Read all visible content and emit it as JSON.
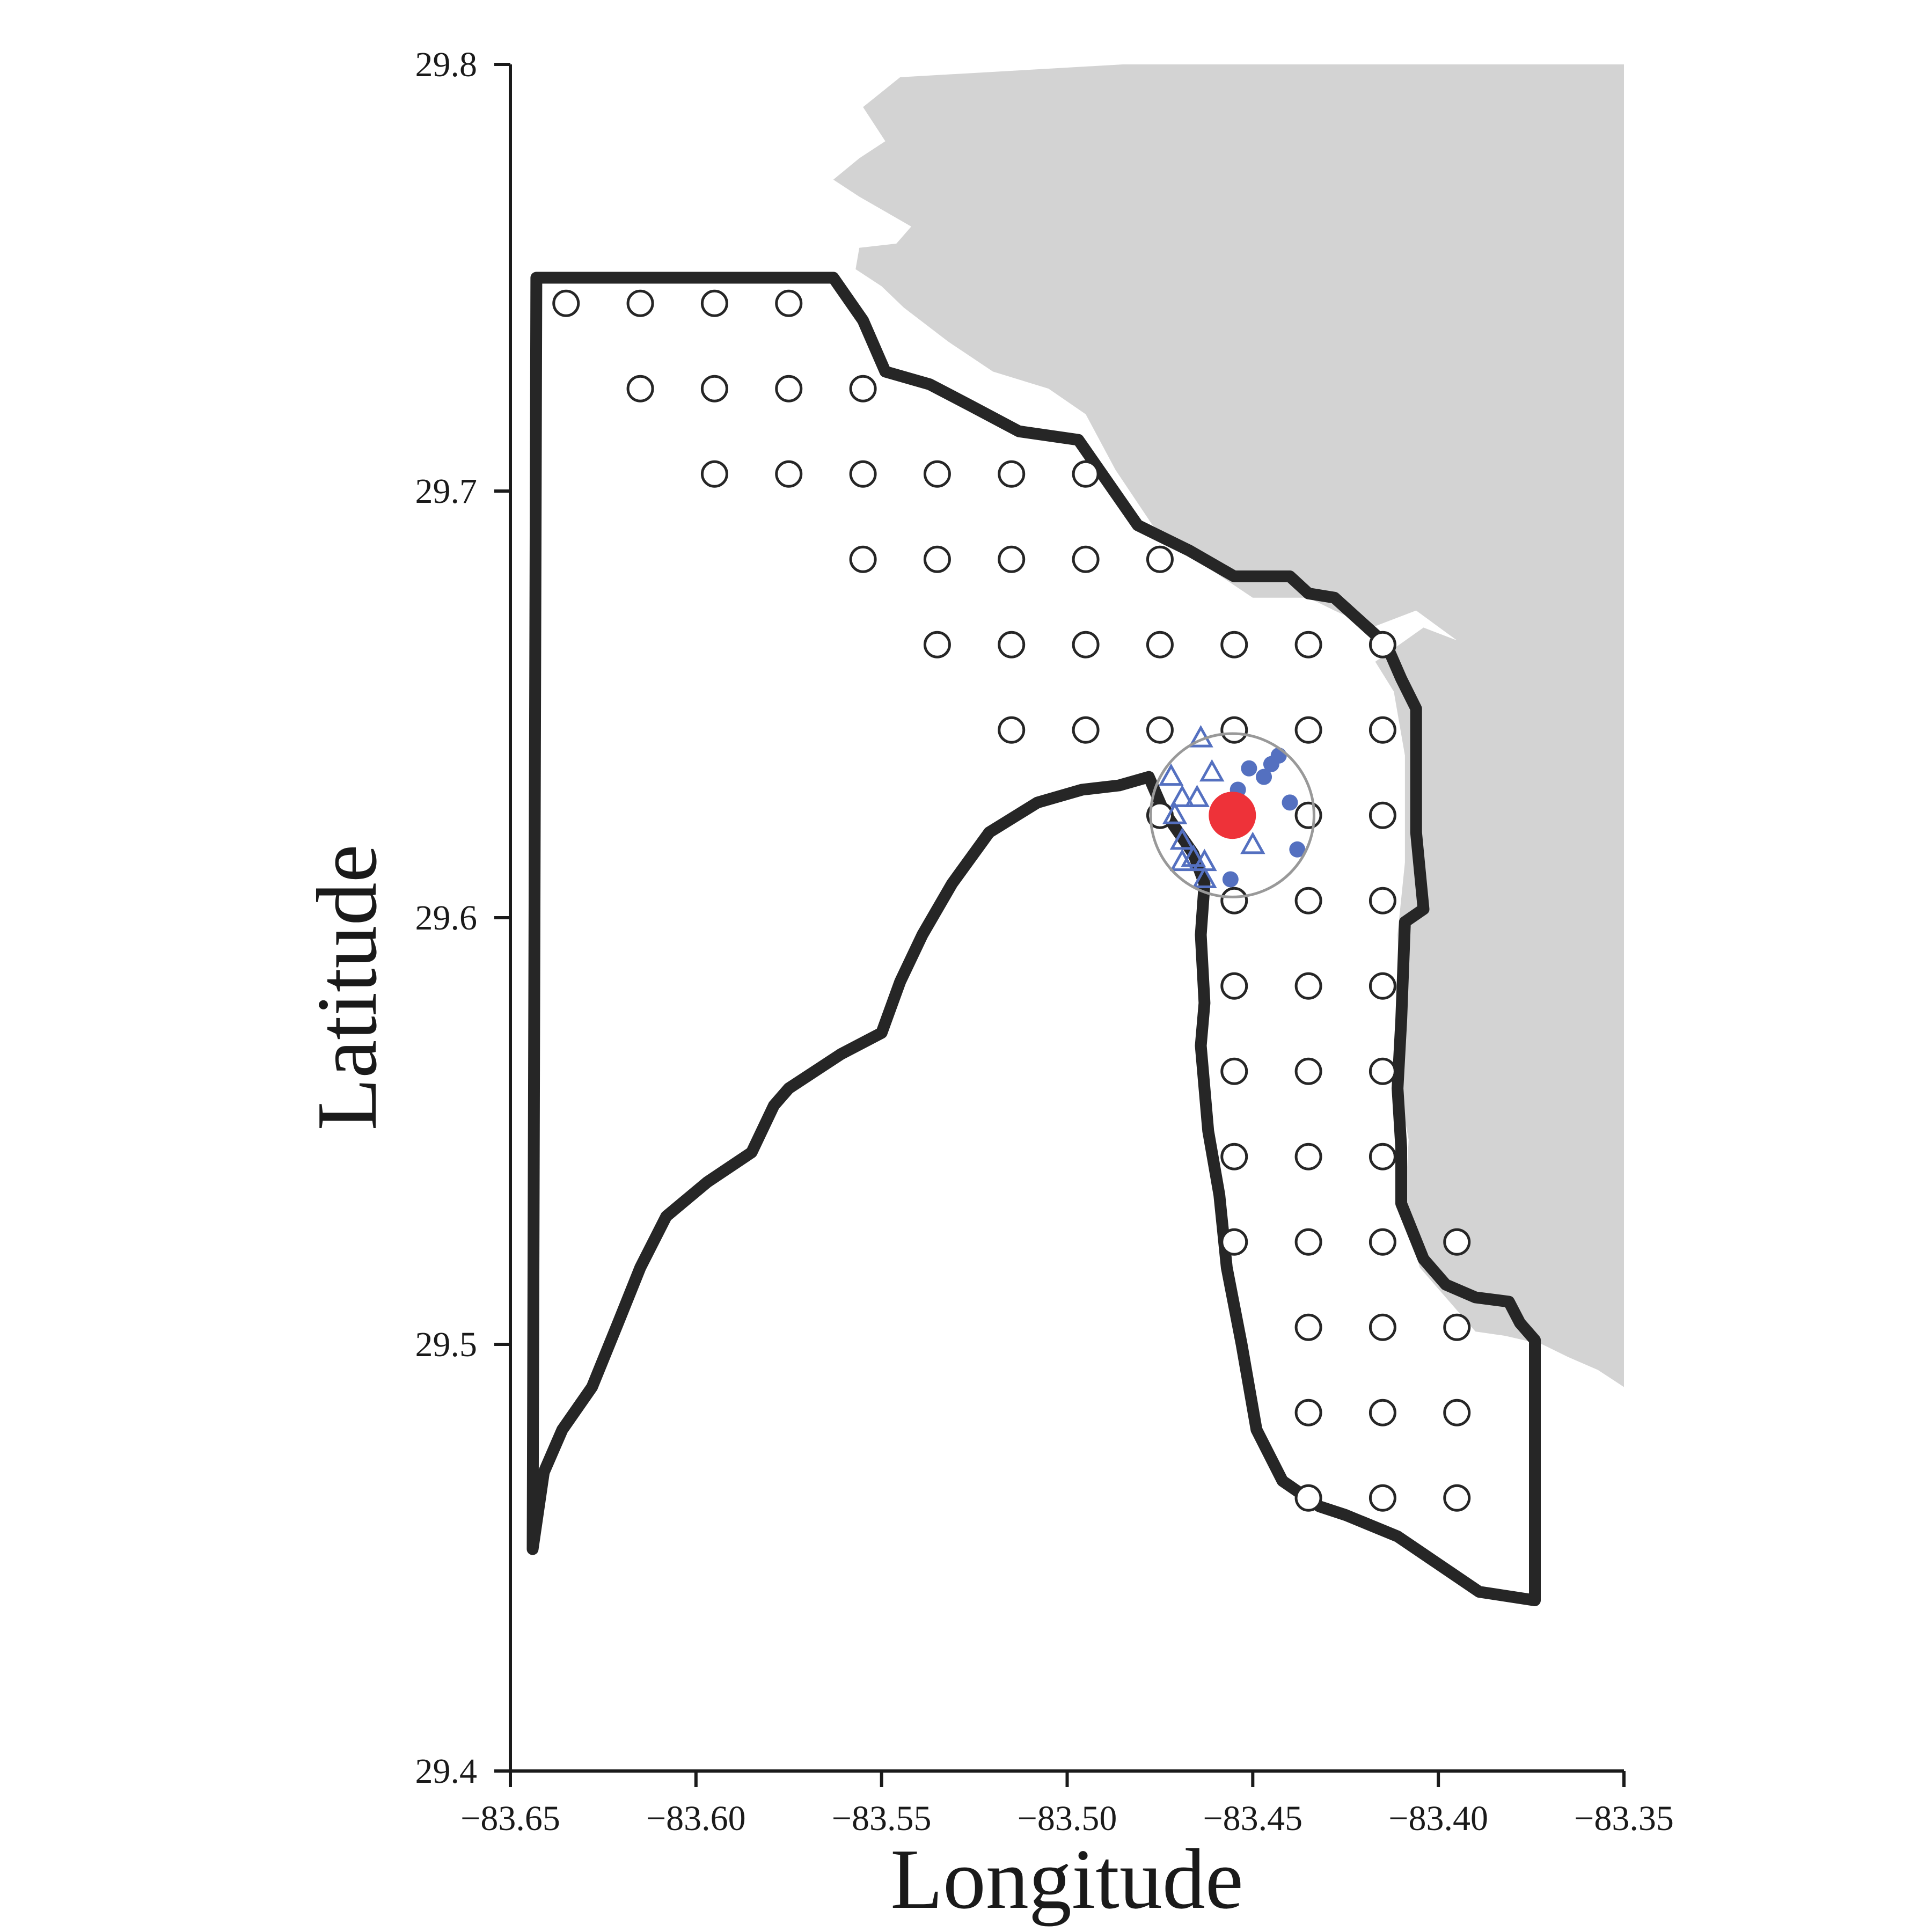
{
  "chart_data": {
    "type": "scatter",
    "title": "",
    "xlabel": "Longitude",
    "ylabel": "Latitude",
    "xlim": [
      -83.65,
      -83.35
    ],
    "ylim": [
      29.4,
      29.8
    ],
    "x_ticks": [
      -83.65,
      -83.6,
      -83.55,
      -83.5,
      -83.45,
      -83.4,
      -83.35
    ],
    "x_tick_labels": [
      "−83.65",
      "−83.60",
      "−83.55",
      "−83.50",
      "−83.45",
      "−83.40",
      "−83.35"
    ],
    "y_ticks": [
      29.4,
      29.5,
      29.6,
      29.7,
      29.8
    ],
    "y_tick_labels": [
      "29.4",
      "29.5",
      "29.6",
      "29.7",
      "29.8"
    ],
    "grid": false,
    "legend": "none",
    "colors": {
      "land": "#d3d3d3",
      "boundary": "#262626",
      "grid_station": "#262626",
      "nearby_point": "#5470c0",
      "focal_point": "#ee3239",
      "buffer_circle": "#999999"
    },
    "land": [
      [
        -83.485,
        29.8
      ],
      [
        -83.35,
        29.8
      ],
      [
        -83.35,
        29.49
      ],
      [
        -83.357,
        29.494
      ],
      [
        -83.365,
        29.497
      ],
      [
        -83.372,
        29.5
      ],
      [
        -83.382,
        29.502
      ],
      [
        -83.39,
        29.503
      ],
      [
        -83.397,
        29.51
      ],
      [
        -83.405,
        29.518
      ],
      [
        -83.409,
        29.532
      ],
      [
        -83.408,
        29.548
      ],
      [
        -83.411,
        29.562
      ],
      [
        -83.41,
        29.578
      ],
      [
        -83.411,
        29.596
      ],
      [
        -83.409,
        29.613
      ],
      [
        -83.409,
        29.638
      ],
      [
        -83.412,
        29.653
      ],
      [
        -83.417,
        29.66
      ],
      [
        -83.404,
        29.668
      ],
      [
        -83.395,
        29.665
      ],
      [
        -83.406,
        29.672
      ],
      [
        -83.418,
        29.668
      ],
      [
        -83.428,
        29.672
      ],
      [
        -83.435,
        29.675
      ],
      [
        -83.45,
        29.675
      ],
      [
        -83.462,
        29.682
      ],
      [
        -83.477,
        29.692
      ],
      [
        -83.487,
        29.705
      ],
      [
        -83.495,
        29.718
      ],
      [
        -83.505,
        29.724
      ],
      [
        -83.52,
        29.728
      ],
      [
        -83.532,
        29.735
      ],
      [
        -83.544,
        29.743
      ],
      [
        -83.55,
        29.748
      ],
      [
        -83.557,
        29.752
      ],
      [
        -83.556,
        29.757
      ],
      [
        -83.546,
        29.758
      ],
      [
        -83.542,
        29.762
      ],
      [
        -83.548,
        29.765
      ],
      [
        -83.556,
        29.769
      ],
      [
        -83.563,
        29.773
      ],
      [
        -83.556,
        29.778
      ],
      [
        -83.549,
        29.782
      ],
      [
        -83.555,
        29.79
      ],
      [
        -83.545,
        29.797
      ]
    ],
    "boundary": [
      [
        -83.643,
        29.75
      ],
      [
        -83.563,
        29.75
      ],
      [
        -83.555,
        29.74
      ],
      [
        -83.549,
        29.728
      ],
      [
        -83.537,
        29.725
      ],
      [
        -83.526,
        29.72
      ],
      [
        -83.513,
        29.714
      ],
      [
        -83.497,
        29.712
      ],
      [
        -83.489,
        29.702
      ],
      [
        -83.481,
        29.692
      ],
      [
        -83.467,
        29.686
      ],
      [
        -83.455,
        29.68
      ],
      [
        -83.44,
        29.68
      ],
      [
        -83.435,
        29.676
      ],
      [
        -83.428,
        29.675
      ],
      [
        -83.414,
        29.664
      ],
      [
        -83.41,
        29.656
      ],
      [
        -83.406,
        29.649
      ],
      [
        -83.406,
        29.62
      ],
      [
        -83.404,
        29.602
      ],
      [
        -83.409,
        29.599
      ],
      [
        -83.41,
        29.576
      ],
      [
        -83.411,
        29.56
      ],
      [
        -83.41,
        29.546
      ],
      [
        -83.41,
        29.533
      ],
      [
        -83.404,
        29.52
      ],
      [
        -83.398,
        29.514
      ],
      [
        -83.39,
        29.511
      ],
      [
        -83.381,
        29.51
      ],
      [
        -83.378,
        29.505
      ],
      [
        -83.374,
        29.501
      ],
      [
        -83.374,
        29.44
      ],
      [
        -83.389,
        29.442
      ],
      [
        -83.411,
        29.455
      ],
      [
        -83.425,
        29.46
      ],
      [
        -83.432,
        29.462
      ],
      [
        -83.442,
        29.468
      ],
      [
        -83.449,
        29.48
      ],
      [
        -83.453,
        29.5
      ],
      [
        -83.457,
        29.518
      ],
      [
        -83.459,
        29.535
      ],
      [
        -83.462,
        29.55
      ],
      [
        -83.464,
        29.57
      ],
      [
        -83.463,
        29.58
      ],
      [
        -83.464,
        29.596
      ],
      [
        -83.463,
        29.608
      ],
      [
        -83.466,
        29.615
      ],
      [
        -83.474,
        29.625
      ],
      [
        -83.478,
        29.633
      ],
      [
        -83.486,
        29.631
      ],
      [
        -83.496,
        29.63
      ],
      [
        -83.508,
        29.627
      ],
      [
        -83.521,
        29.62
      ],
      [
        -83.531,
        29.608
      ],
      [
        -83.539,
        29.596
      ],
      [
        -83.545,
        29.585
      ],
      [
        -83.55,
        29.573
      ],
      [
        -83.561,
        29.568
      ],
      [
        -83.575,
        29.56
      ],
      [
        -83.579,
        29.556
      ],
      [
        -83.585,
        29.545
      ],
      [
        -83.597,
        29.538
      ],
      [
        -83.608,
        29.53
      ],
      [
        -83.615,
        29.518
      ],
      [
        -83.621,
        29.505
      ],
      [
        -83.628,
        29.49
      ],
      [
        -83.636,
        29.48
      ],
      [
        -83.641,
        29.47
      ],
      [
        -83.644,
        29.452
      ],
      [
        -83.643,
        29.75
      ]
    ],
    "grid_stations": [
      [
        -83.635,
        29.744
      ],
      [
        -83.615,
        29.744
      ],
      [
        -83.595,
        29.744
      ],
      [
        -83.575,
        29.744
      ],
      [
        -83.615,
        29.724
      ],
      [
        -83.595,
        29.724
      ],
      [
        -83.575,
        29.724
      ],
      [
        -83.555,
        29.724
      ],
      [
        -83.595,
        29.704
      ],
      [
        -83.575,
        29.704
      ],
      [
        -83.555,
        29.704
      ],
      [
        -83.535,
        29.704
      ],
      [
        -83.515,
        29.704
      ],
      [
        -83.495,
        29.704
      ],
      [
        -83.555,
        29.684
      ],
      [
        -83.535,
        29.684
      ],
      [
        -83.515,
        29.684
      ],
      [
        -83.495,
        29.684
      ],
      [
        -83.475,
        29.684
      ],
      [
        -83.535,
        29.664
      ],
      [
        -83.515,
        29.664
      ],
      [
        -83.495,
        29.664
      ],
      [
        -83.475,
        29.664
      ],
      [
        -83.455,
        29.664
      ],
      [
        -83.435,
        29.664
      ],
      [
        -83.415,
        29.664
      ],
      [
        -83.515,
        29.644
      ],
      [
        -83.495,
        29.644
      ],
      [
        -83.475,
        29.644
      ],
      [
        -83.455,
        29.644
      ],
      [
        -83.435,
        29.644
      ],
      [
        -83.415,
        29.644
      ],
      [
        -83.475,
        29.624
      ],
      [
        -83.435,
        29.624
      ],
      [
        -83.415,
        29.624
      ],
      [
        -83.455,
        29.604
      ],
      [
        -83.435,
        29.604
      ],
      [
        -83.415,
        29.604
      ],
      [
        -83.455,
        29.584
      ],
      [
        -83.435,
        29.584
      ],
      [
        -83.415,
        29.584
      ],
      [
        -83.455,
        29.564
      ],
      [
        -83.435,
        29.564
      ],
      [
        -83.415,
        29.564
      ],
      [
        -83.455,
        29.544
      ],
      [
        -83.435,
        29.544
      ],
      [
        -83.415,
        29.544
      ],
      [
        -83.455,
        29.524
      ],
      [
        -83.435,
        29.524
      ],
      [
        -83.415,
        29.524
      ],
      [
        -83.395,
        29.524
      ],
      [
        -83.435,
        29.504
      ],
      [
        -83.415,
        29.504
      ],
      [
        -83.395,
        29.504
      ],
      [
        -83.435,
        29.484
      ],
      [
        -83.415,
        29.484
      ],
      [
        -83.395,
        29.484
      ],
      [
        -83.435,
        29.464
      ],
      [
        -83.415,
        29.464
      ],
      [
        -83.395,
        29.464
      ]
    ],
    "nearby_dots": [
      [
        -83.443,
        29.638
      ],
      [
        -83.445,
        29.636
      ],
      [
        -83.447,
        29.633
      ],
      [
        -83.451,
        29.635
      ],
      [
        -83.454,
        29.63
      ],
      [
        -83.44,
        29.627
      ],
      [
        -83.456,
        29.624
      ],
      [
        -83.438,
        29.616
      ],
      [
        -83.456,
        29.609
      ]
    ],
    "nearby_triangles": [
      [
        -83.464,
        29.642
      ],
      [
        -83.472,
        29.633
      ],
      [
        -83.461,
        29.634
      ],
      [
        -83.469,
        29.628
      ],
      [
        -83.465,
        29.628
      ],
      [
        -83.458,
        29.626
      ],
      [
        -83.471,
        29.624
      ],
      [
        -83.469,
        29.618
      ],
      [
        -83.466,
        29.614
      ],
      [
        -83.469,
        29.613
      ],
      [
        -83.463,
        29.613
      ],
      [
        -83.463,
        29.609
      ],
      [
        -83.45,
        29.617
      ]
    ],
    "focal_point": [
      -83.4555,
      29.624
    ],
    "buffer_circle": {
      "center": [
        -83.4555,
        29.624
      ],
      "radius_deg": 0.022
    }
  }
}
